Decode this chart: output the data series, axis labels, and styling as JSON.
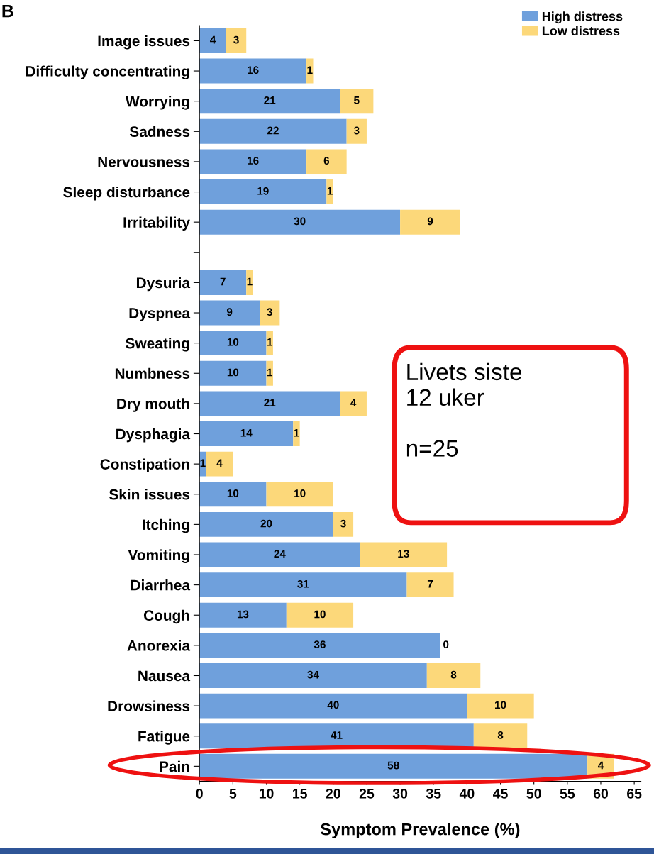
{
  "chart_data": {
    "type": "bar",
    "orientation": "horizontal",
    "stacked": true,
    "title": "B",
    "xlabel": "Symptom Prevalence (%)",
    "categories": [
      "Image issues",
      "Difficulty concentrating",
      "Worrying",
      "Sadness",
      "Nervousness",
      "Sleep disturbance",
      "Irritability",
      null,
      "Dysuria",
      "Dyspnea",
      "Sweating",
      "Numbness",
      "Dry mouth",
      "Dysphagia",
      "Constipation",
      "Skin issues",
      "Itching",
      "Vomiting",
      "Diarrhea",
      "Cough",
      "Anorexia",
      "Nausea",
      "Drowsiness",
      "Fatigue",
      "Pain"
    ],
    "series": [
      {
        "name": "High distress",
        "color": "#6fa0dc",
        "values": [
          4,
          16,
          21,
          22,
          16,
          19,
          30,
          null,
          7,
          9,
          10,
          10,
          21,
          14,
          1,
          10,
          20,
          24,
          31,
          13,
          36,
          34,
          40,
          41,
          58
        ]
      },
      {
        "name": "Low distress",
        "color": "#fcd87a",
        "values": [
          3,
          1,
          5,
          3,
          6,
          1,
          9,
          null,
          1,
          3,
          1,
          1,
          4,
          1,
          4,
          10,
          3,
          13,
          7,
          10,
          0,
          8,
          10,
          8,
          4
        ]
      }
    ],
    "xlim": [
      0,
      66
    ],
    "xticks": [
      0,
      5,
      10,
      15,
      20,
      25,
      30,
      35,
      40,
      45,
      50,
      55,
      60,
      65
    ],
    "data_labels": true,
    "legend": "top right",
    "grid": false,
    "annotations": [
      "Livets siste\n12 uker\n\nn=25"
    ]
  }
}
